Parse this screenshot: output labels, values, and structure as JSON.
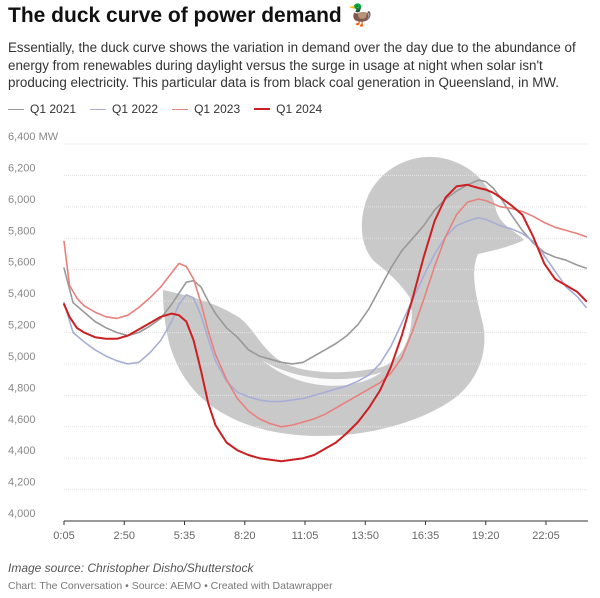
{
  "title": "The duck curve of power demand 🦆",
  "subtitle": "Essentially, the duck curve shows the variation in demand over the day due to the abundance of energy from renewables during daylight versus the surge in usage at night when solar isn't producing electricity. This particular data is from black coal generation in Queensland, in MW.",
  "image_credit": "Image source: Christopher Disho/Shutterstock",
  "footer": "Chart: The Conversation • Source: AEMO • Created with Datawrapper",
  "chart_data": {
    "type": "line",
    "ylabel": "MW",
    "ylim": [
      4000,
      6400
    ],
    "yticks": [
      4000,
      4200,
      4400,
      4600,
      4800,
      5000,
      5200,
      5400,
      5600,
      5800,
      6000,
      6200,
      6400
    ],
    "ytick_labels": [
      "4,000",
      "4,200",
      "4,400",
      "4,600",
      "4,800",
      "5,000",
      "5,200",
      "5,400",
      "5,600",
      "5,800",
      "6,000",
      "6,200",
      "6,400 MW"
    ],
    "xtick_labels": [
      "0:05",
      "2:50",
      "5:35",
      "8:20",
      "11:05",
      "13:50",
      "16:35",
      "19:20",
      "22:05"
    ],
    "xtick_times": [
      "0:05",
      "2:50",
      "5:35",
      "8:20",
      "11:05",
      "13:50",
      "16:35",
      "19:20",
      "22:05"
    ],
    "x_domain": [
      "0:05",
      "24:00"
    ],
    "grid": "horizontal",
    "legend_position": "top-left",
    "series": [
      {
        "name": "Q1 2021",
        "color": "#999999",
        "width": 1.6,
        "x": [
          "0:05",
          "0:30",
          "1:00",
          "1:30",
          "2:00",
          "2:30",
          "3:00",
          "3:30",
          "4:00",
          "4:30",
          "5:00",
          "5:20",
          "5:40",
          "6:00",
          "6:20",
          "6:40",
          "7:00",
          "7:30",
          "8:00",
          "8:30",
          "9:00",
          "9:30",
          "10:00",
          "10:30",
          "11:00",
          "11:30",
          "12:00",
          "12:30",
          "13:00",
          "13:30",
          "14:00",
          "14:30",
          "15:00",
          "15:30",
          "16:00",
          "16:30",
          "17:00",
          "17:30",
          "18:00",
          "18:30",
          "19:00",
          "19:20",
          "19:40",
          "20:00",
          "20:30",
          "21:00",
          "21:30",
          "22:00",
          "22:30",
          "23:00",
          "23:30",
          "23:55"
        ],
        "values": [
          5610,
          5390,
          5330,
          5270,
          5230,
          5200,
          5180,
          5200,
          5240,
          5290,
          5380,
          5450,
          5520,
          5530,
          5490,
          5400,
          5320,
          5230,
          5170,
          5090,
          5050,
          5030,
          5010,
          5000,
          5010,
          5050,
          5090,
          5130,
          5180,
          5250,
          5350,
          5480,
          5610,
          5720,
          5800,
          5880,
          5980,
          6050,
          6100,
          6140,
          6170,
          6160,
          6120,
          6060,
          5950,
          5850,
          5770,
          5710,
          5680,
          5660,
          5630,
          5610
        ]
      },
      {
        "name": "Q1 2022",
        "color": "#a7aed6",
        "width": 1.6,
        "x": [
          "0:05",
          "0:30",
          "1:00",
          "1:30",
          "2:00",
          "2:30",
          "3:00",
          "3:30",
          "4:00",
          "4:30",
          "5:00",
          "5:20",
          "5:40",
          "6:00",
          "6:20",
          "6:40",
          "7:00",
          "7:30",
          "8:00",
          "8:30",
          "9:00",
          "9:30",
          "10:00",
          "10:30",
          "11:00",
          "11:30",
          "12:00",
          "12:30",
          "13:00",
          "13:30",
          "14:00",
          "14:30",
          "15:00",
          "15:30",
          "16:00",
          "16:30",
          "17:00",
          "17:30",
          "18:00",
          "18:30",
          "19:00",
          "19:20",
          "19:40",
          "20:00",
          "20:30",
          "21:00",
          "21:30",
          "22:00",
          "22:30",
          "23:00",
          "23:30",
          "23:55"
        ],
        "values": [
          5390,
          5200,
          5140,
          5090,
          5050,
          5020,
          5000,
          5010,
          5070,
          5150,
          5270,
          5380,
          5440,
          5420,
          5310,
          5160,
          5020,
          4890,
          4820,
          4790,
          4770,
          4760,
          4760,
          4770,
          4780,
          4800,
          4820,
          4840,
          4860,
          4890,
          4930,
          5000,
          5110,
          5260,
          5410,
          5560,
          5700,
          5810,
          5880,
          5910,
          5930,
          5920,
          5900,
          5880,
          5860,
          5830,
          5780,
          5690,
          5590,
          5490,
          5430,
          5360
        ]
      },
      {
        "name": "Q1 2023",
        "color": "#e8807c",
        "width": 1.6,
        "x": [
          "0:05",
          "0:20",
          "0:40",
          "1:00",
          "1:30",
          "2:00",
          "2:30",
          "3:00",
          "3:30",
          "4:00",
          "4:30",
          "5:00",
          "5:20",
          "5:40",
          "6:00",
          "6:20",
          "6:40",
          "7:00",
          "7:30",
          "8:00",
          "8:30",
          "9:00",
          "9:30",
          "10:00",
          "10:30",
          "11:00",
          "11:30",
          "12:00",
          "12:30",
          "13:00",
          "13:30",
          "14:00",
          "14:30",
          "15:00",
          "15:30",
          "16:00",
          "16:30",
          "17:00",
          "17:30",
          "18:00",
          "18:30",
          "19:00",
          "19:20",
          "19:40",
          "20:00",
          "20:30",
          "21:00",
          "21:30",
          "22:00",
          "22:30",
          "23:00",
          "23:30",
          "23:55"
        ],
        "values": [
          5780,
          5500,
          5420,
          5370,
          5330,
          5300,
          5290,
          5310,
          5360,
          5420,
          5490,
          5580,
          5640,
          5620,
          5540,
          5390,
          5210,
          5060,
          4900,
          4780,
          4700,
          4650,
          4620,
          4600,
          4610,
          4630,
          4650,
          4680,
          4720,
          4760,
          4800,
          4840,
          4880,
          4940,
          5040,
          5210,
          5410,
          5620,
          5810,
          5950,
          6030,
          6050,
          6040,
          6020,
          6000,
          5990,
          5970,
          5940,
          5900,
          5870,
          5850,
          5830,
          5810
        ]
      },
      {
        "name": "Q1 2024",
        "color": "#cc1f22",
        "width": 2.0,
        "x": [
          "0:05",
          "0:20",
          "0:40",
          "1:00",
          "1:30",
          "2:00",
          "2:30",
          "3:00",
          "3:30",
          "4:00",
          "4:30",
          "5:00",
          "5:20",
          "5:40",
          "6:00",
          "6:20",
          "6:40",
          "7:00",
          "7:30",
          "8:00",
          "8:30",
          "9:00",
          "9:30",
          "10:00",
          "10:30",
          "11:00",
          "11:30",
          "12:00",
          "12:30",
          "13:00",
          "13:30",
          "14:00",
          "14:30",
          "15:00",
          "15:30",
          "16:00",
          "16:30",
          "17:00",
          "17:30",
          "18:00",
          "18:30",
          "19:00",
          "19:20",
          "19:40",
          "20:00",
          "20:30",
          "21:00",
          "21:30",
          "22:00",
          "22:30",
          "23:00",
          "23:30",
          "23:55"
        ],
        "values": [
          5380,
          5300,
          5230,
          5200,
          5170,
          5160,
          5160,
          5180,
          5220,
          5260,
          5300,
          5320,
          5310,
          5270,
          5150,
          4960,
          4750,
          4610,
          4500,
          4450,
          4420,
          4400,
          4390,
          4380,
          4390,
          4400,
          4420,
          4460,
          4500,
          4560,
          4630,
          4720,
          4830,
          4980,
          5180,
          5420,
          5680,
          5910,
          6060,
          6130,
          6140,
          6120,
          6110,
          6090,
          6060,
          6010,
          5950,
          5810,
          5640,
          5540,
          5500,
          5460,
          5400
        ]
      }
    ]
  }
}
